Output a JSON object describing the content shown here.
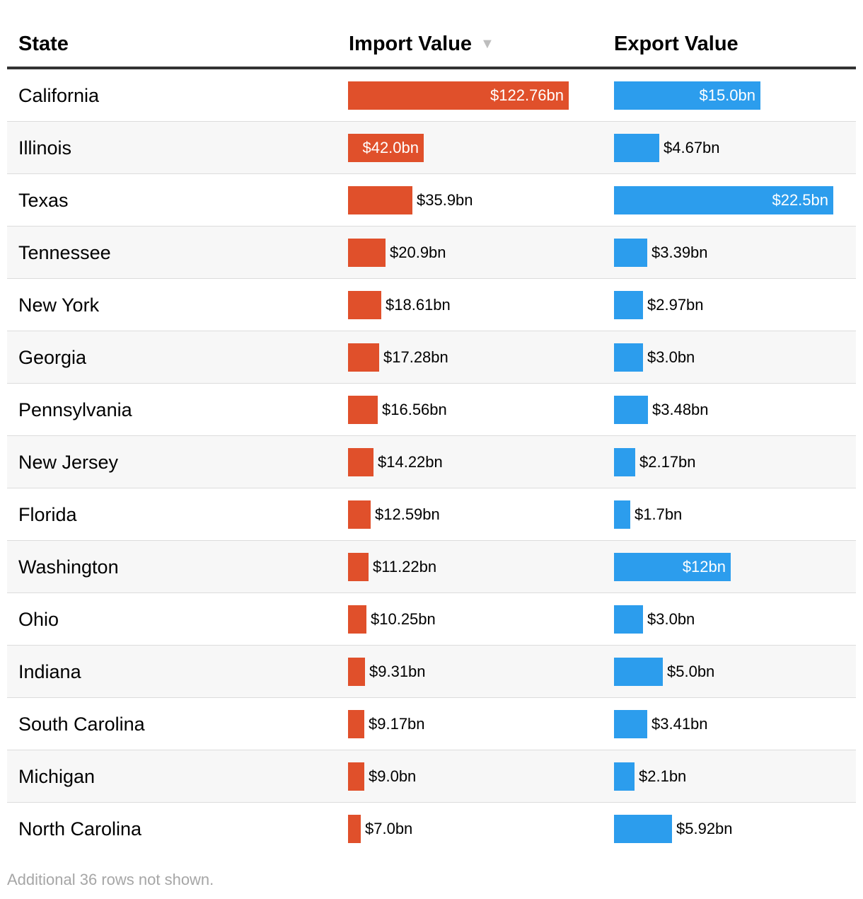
{
  "table": {
    "headers": {
      "state": "State",
      "import": "Import Value",
      "sort_indicator": "▼",
      "export": "Export Value"
    },
    "footnote": "Additional 36 rows not shown."
  },
  "colors": {
    "import_bar": "#e0502b",
    "export_bar": "#2c9ded",
    "inside_label": "#ffffff"
  },
  "chart_data": {
    "type": "table",
    "title": "",
    "columns": [
      "State",
      "Import Value",
      "Export Value"
    ],
    "sorted_by": "Import Value",
    "sort_order": "descending",
    "categories": [
      "California",
      "Illinois",
      "Texas",
      "Tennessee",
      "New York",
      "Georgia",
      "Pennsylvania",
      "New Jersey",
      "Florida",
      "Washington",
      "Ohio",
      "Indiana",
      "South Carolina",
      "Michigan",
      "North Carolina"
    ],
    "series": [
      {
        "name": "Import Value",
        "color": "#e0502b",
        "values": [
          122.76,
          42.0,
          35.9,
          20.9,
          18.61,
          17.28,
          16.56,
          14.22,
          12.59,
          11.22,
          10.25,
          9.31,
          9.17,
          9.0,
          7.0
        ],
        "labels": [
          "$122.76bn",
          "$42.0bn",
          "$35.9bn",
          "$20.9bn",
          "$18.61bn",
          "$17.28bn",
          "$16.56bn",
          "$14.22bn",
          "$12.59bn",
          "$11.22bn",
          "$10.25bn",
          "$9.31bn",
          "$9.17bn",
          "$9.0bn",
          "$7.0bn"
        ],
        "max": 122.76
      },
      {
        "name": "Export Value",
        "color": "#2c9ded",
        "values": [
          15.0,
          4.67,
          22.5,
          3.39,
          2.97,
          3.0,
          3.48,
          2.17,
          1.7,
          12,
          3.0,
          5.0,
          3.41,
          2.1,
          5.92
        ],
        "labels": [
          "$15.0bn",
          "$4.67bn",
          "$22.5bn",
          "$3.39bn",
          "$2.97bn",
          "$3.0bn",
          "$3.48bn",
          "$2.17bn",
          "$1.7bn",
          "$12bn",
          "$3.0bn",
          "$5.0bn",
          "$3.41bn",
          "$2.1bn",
          "$5.92bn"
        ],
        "max": 22.5
      }
    ]
  }
}
